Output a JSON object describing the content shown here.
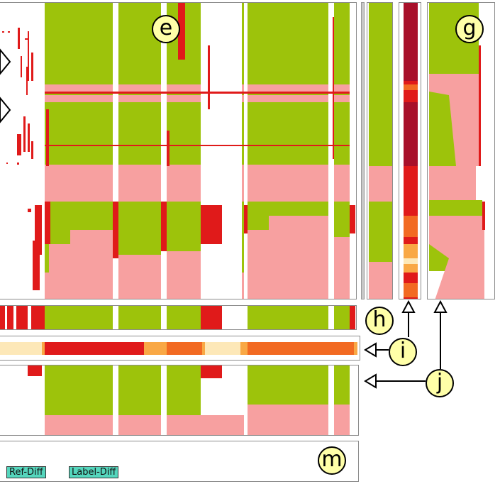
{
  "callouts": {
    "e": "e",
    "g": "g",
    "h": "h",
    "i": "i",
    "j": "j",
    "m": "m"
  },
  "buttons": {
    "ref_diff": "Ref-Diff",
    "label_diff": "Label-Diff"
  },
  "colors": {
    "green": "#9dc30b",
    "pink": "#f7a0a0",
    "red": "#e01a1a",
    "dark_red": "#a8102a",
    "orange": "#f26a22",
    "light": "#fde8b8",
    "border": "#8c8c8c"
  },
  "icons": [
    "arrow-left-icon",
    "arrow-up-icon",
    "chevron-right-icon"
  ]
}
